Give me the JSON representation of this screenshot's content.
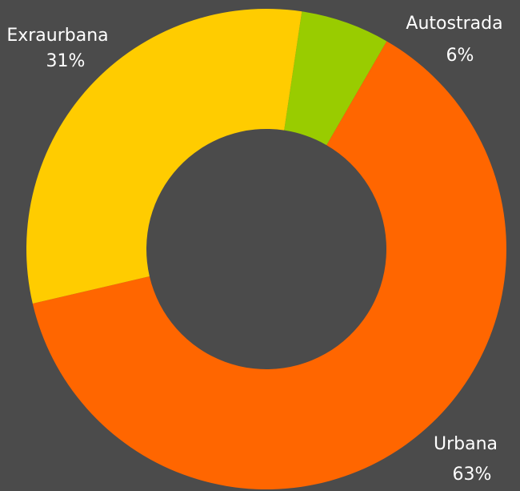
{
  "chart_data": {
    "type": "donut",
    "categories": [
      "Autostrada",
      "Urbana",
      "Exraurbana"
    ],
    "values": [
      6,
      63,
      31
    ],
    "value_labels": [
      "6%",
      "63%",
      "31%"
    ],
    "colors": [
      "#99cc00",
      "#ff6600",
      "#ffcc00"
    ]
  }
}
